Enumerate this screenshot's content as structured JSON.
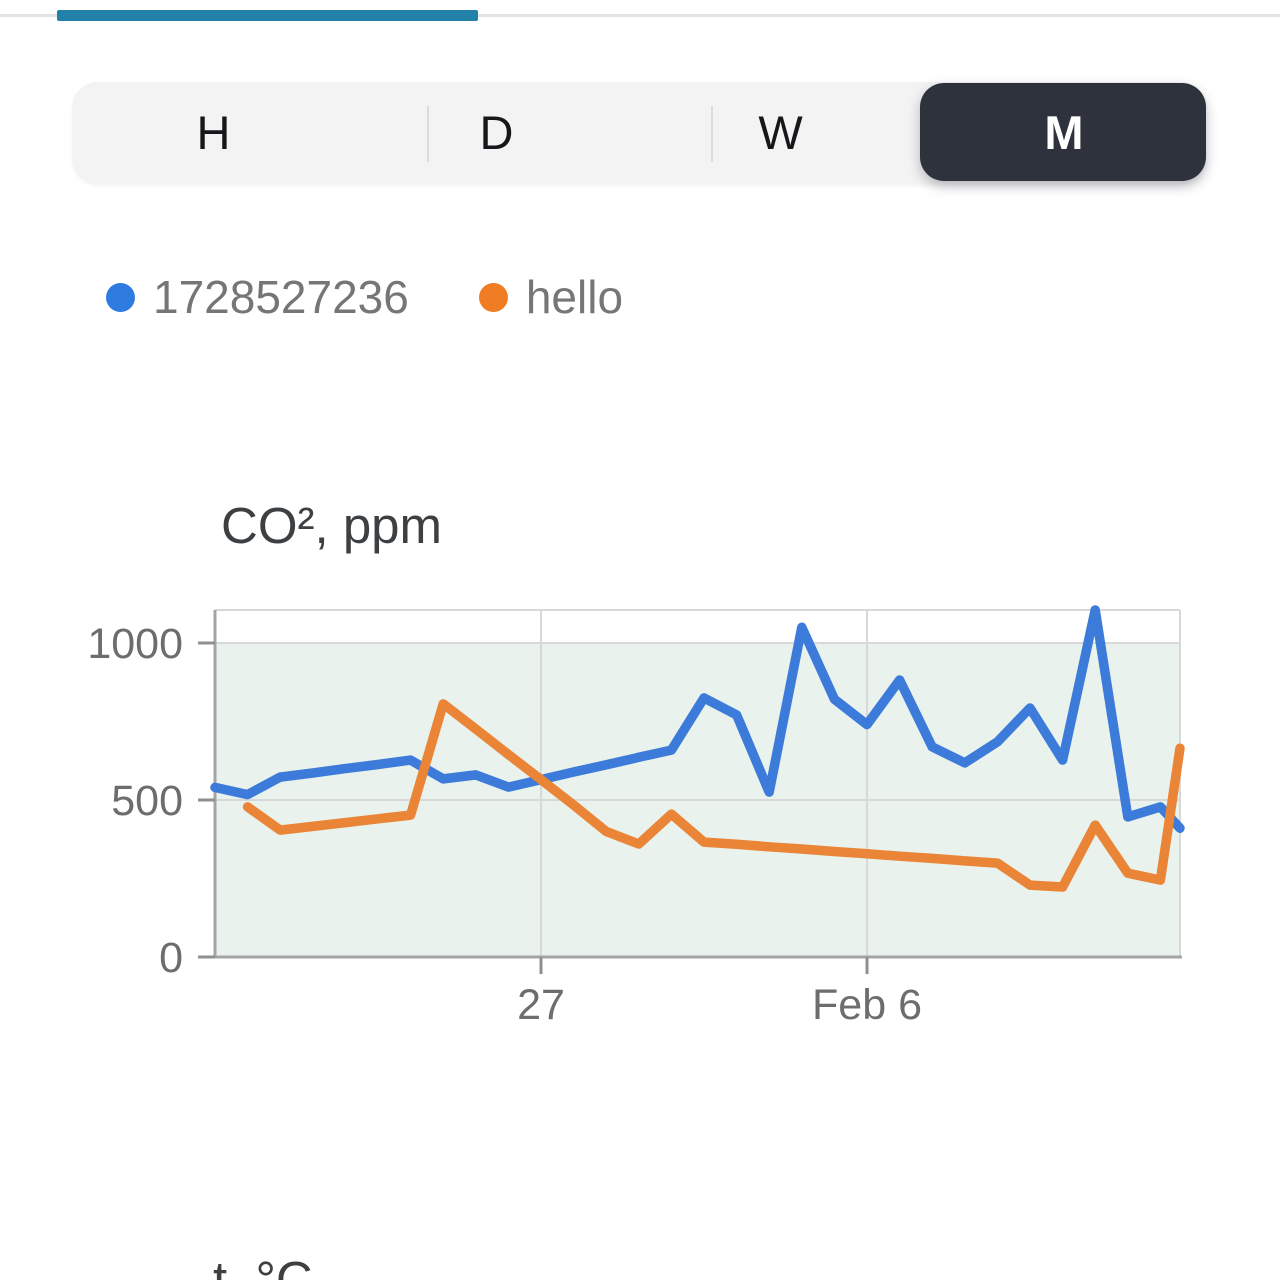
{
  "pager_indicator": {
    "track_color": "#e4e4e4",
    "bar_color": "#2181a8"
  },
  "tabs": {
    "items": [
      {
        "label": "H"
      },
      {
        "label": "D"
      },
      {
        "label": "W"
      },
      {
        "label": "M"
      }
    ],
    "selected": "M",
    "selected_bg": "#2e323d",
    "selected_text_color": "#ffffff"
  },
  "legend": {
    "items": [
      {
        "label": "1728527236",
        "color": "#2f7ce0"
      },
      {
        "label": "hello",
        "color": "#f07d23"
      }
    ]
  },
  "chart_data": {
    "type": "line",
    "title": "CO², ppm",
    "xlabel": "",
    "ylabel": "ppm",
    "ylim": [
      0,
      1105
    ],
    "xlim": [
      0,
      29.6
    ],
    "grid": true,
    "legend_position": "top",
    "yticks": [
      {
        "v": 0,
        "label": "0"
      },
      {
        "v": 500,
        "label": "500"
      },
      {
        "v": 1000,
        "label": "1000"
      }
    ],
    "xticks": [
      {
        "v": 10,
        "label": "27"
      },
      {
        "v": 20,
        "label": "Feb 6"
      }
    ],
    "band": {
      "from": 0,
      "to": 1000,
      "color": "#e9f2ec"
    },
    "series": [
      {
        "name": "1728527236",
        "color": "#3c7bd9",
        "points": [
          [
            0,
            540
          ],
          [
            1,
            517
          ],
          [
            2,
            573
          ],
          [
            3,
            586
          ],
          [
            4,
            600
          ],
          [
            5,
            613
          ],
          [
            6,
            627
          ],
          [
            7,
            567
          ],
          [
            8,
            580
          ],
          [
            9,
            541
          ],
          [
            10,
            565
          ],
          [
            11,
            589
          ],
          [
            12,
            612
          ],
          [
            13,
            636
          ],
          [
            14,
            659
          ],
          [
            15,
            825
          ],
          [
            16,
            771
          ],
          [
            17,
            525
          ],
          [
            18,
            1050
          ],
          [
            19,
            821
          ],
          [
            20,
            740
          ],
          [
            21,
            882
          ],
          [
            22,
            669
          ],
          [
            23,
            618
          ],
          [
            24,
            685
          ],
          [
            25,
            793
          ],
          [
            26,
            627
          ],
          [
            27,
            1105
          ],
          [
            28,
            446
          ],
          [
            29,
            478
          ],
          [
            29.6,
            410
          ]
        ]
      },
      {
        "name": "hello",
        "color": "#ea8436",
        "points": [
          [
            1,
            478
          ],
          [
            2,
            404
          ],
          [
            3,
            416
          ],
          [
            4,
            428
          ],
          [
            5,
            440
          ],
          [
            6,
            452
          ],
          [
            7,
            806
          ],
          [
            8,
            726
          ],
          [
            9,
            645
          ],
          [
            10,
            565
          ],
          [
            11,
            484
          ],
          [
            12,
            400
          ],
          [
            13,
            360
          ],
          [
            14,
            455
          ],
          [
            15,
            366
          ],
          [
            16,
            359
          ],
          [
            17,
            351
          ],
          [
            18,
            344
          ],
          [
            19,
            336
          ],
          [
            20,
            329
          ],
          [
            21,
            321
          ],
          [
            22,
            314
          ],
          [
            23,
            306
          ],
          [
            24,
            299
          ],
          [
            25,
            229
          ],
          [
            26,
            223
          ],
          [
            27,
            420
          ],
          [
            28,
            267
          ],
          [
            29,
            245
          ],
          [
            29.6,
            665
          ]
        ]
      }
    ]
  },
  "next_chart": {
    "title": "t, °C"
  }
}
